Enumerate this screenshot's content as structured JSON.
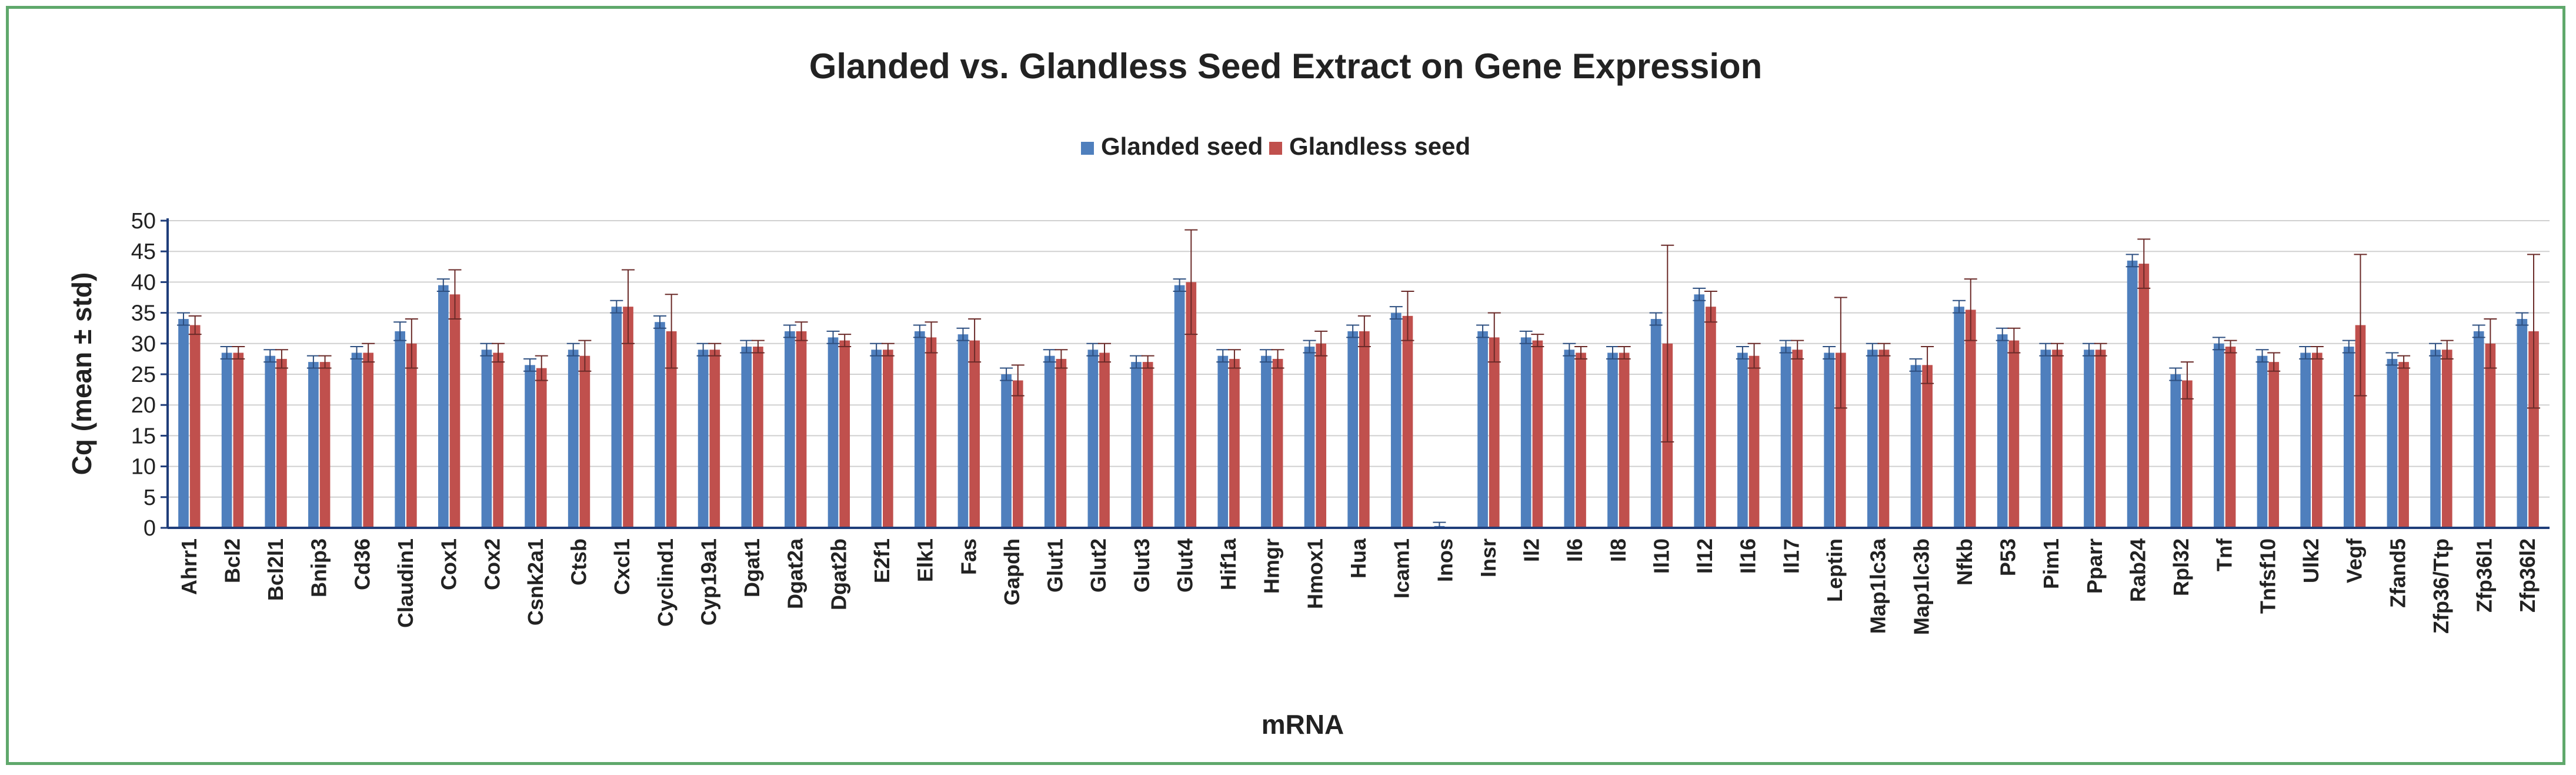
{
  "chart_data": {
    "type": "bar",
    "title": "Glanded vs. Glandless Seed Extract on Gene Expression",
    "xlabel": "mRNA",
    "ylabel": "Cq (mean ± std)",
    "ylim": [
      0,
      50
    ],
    "yticks": [
      0,
      5,
      10,
      15,
      20,
      25,
      30,
      35,
      40,
      45,
      50
    ],
    "grid": true,
    "legend_position": "top-center",
    "colors": {
      "glanded": "#4f7fbd",
      "glandless": "#c0504d",
      "axis": "#1f3d7a",
      "grid": "#d0d0d0",
      "border": "#5fa86b"
    },
    "categories": [
      "Ahrr1",
      "Bcl2",
      "Bcl2l1",
      "Bnip3",
      "Cd36",
      "Claudin1",
      "Cox1",
      "Cox2",
      "Csnk2a1",
      "Ctsb",
      "Cxcl1",
      "Cyclind1",
      "Cyp19a1",
      "Dgat1",
      "Dgat2a",
      "Dgat2b",
      "E2f1",
      "Elk1",
      "Fas",
      "Gapdh",
      "Glut1",
      "Glut2",
      "Glut3",
      "Glut4",
      "Hif1a",
      "Hmgr",
      "Hmox1",
      "Hua",
      "Icam1",
      "Inos",
      "Insr",
      "Il2",
      "Il6",
      "Il8",
      "Il10",
      "Il12",
      "Il16",
      "Il17",
      "Leptin",
      "Map1lc3a",
      "Map1lc3b",
      "Nfkb",
      "P53",
      "Pim1",
      "Pparr",
      "Rab24",
      "Rpl32",
      "Tnf",
      "Tnfsf10",
      "Ulk2",
      "Vegf",
      "Zfand5",
      "Zfp36/Ttp",
      "Zfp36l1",
      "Zfp36l2"
    ],
    "series": [
      {
        "name": "Glanded seed",
        "values": [
          34,
          28.5,
          28,
          27,
          28.5,
          32,
          39.5,
          29,
          26.5,
          29,
          36,
          33.5,
          29,
          29.5,
          32,
          31,
          29,
          32,
          31.5,
          25,
          28,
          29,
          27,
          39.5,
          28,
          28,
          29.5,
          32,
          35,
          0.3,
          32,
          31,
          29,
          28.5,
          34,
          38,
          28.5,
          29.5,
          28.5,
          29,
          26.5,
          36,
          31.5,
          29,
          29,
          43.5,
          25,
          30,
          28,
          28.5,
          29.5,
          27.5,
          29,
          32,
          34
        ],
        "errors": [
          1,
          1,
          1,
          1,
          1,
          1.5,
          1,
          1,
          1,
          1,
          1,
          1,
          1,
          1,
          1,
          1,
          1,
          1,
          1,
          1,
          1,
          1,
          1,
          1,
          1,
          1,
          1,
          1,
          1,
          0.6,
          1,
          1,
          1,
          1,
          1,
          1,
          1,
          1,
          1,
          1,
          1,
          1,
          1,
          1,
          1,
          1,
          1,
          1,
          1,
          1,
          1,
          1,
          1,
          1,
          1
        ]
      },
      {
        "name": "Glandless seed",
        "values": [
          33,
          28.5,
          27.5,
          27,
          28.5,
          30,
          38,
          28.5,
          26,
          28,
          36,
          32,
          29,
          29.5,
          32,
          30.5,
          29,
          31,
          30.5,
          24,
          27.5,
          28.5,
          27,
          40,
          27.5,
          27.5,
          30,
          32,
          34.5,
          0,
          31,
          30.5,
          28.5,
          28.5,
          30,
          36,
          28,
          29,
          28.5,
          29,
          26.5,
          35.5,
          30.5,
          29,
          29,
          43,
          24,
          29.5,
          27,
          28.5,
          33,
          27,
          29,
          30,
          32
        ],
        "errors": [
          1.5,
          1,
          1.5,
          1,
          1.5,
          4,
          4,
          1.5,
          2,
          2.5,
          6,
          6,
          1,
          1,
          1.5,
          1,
          1,
          2.5,
          3.5,
          2.5,
          1.5,
          1.5,
          1,
          8.5,
          1.5,
          1.5,
          2,
          2.5,
          4,
          0,
          4,
          1,
          1,
          1,
          16,
          2.5,
          2,
          1.5,
          9,
          1,
          3,
          5,
          2,
          1,
          1,
          4,
          3,
          1,
          1.5,
          1,
          11.5,
          1,
          1.5,
          4,
          12.5
        ]
      }
    ]
  }
}
